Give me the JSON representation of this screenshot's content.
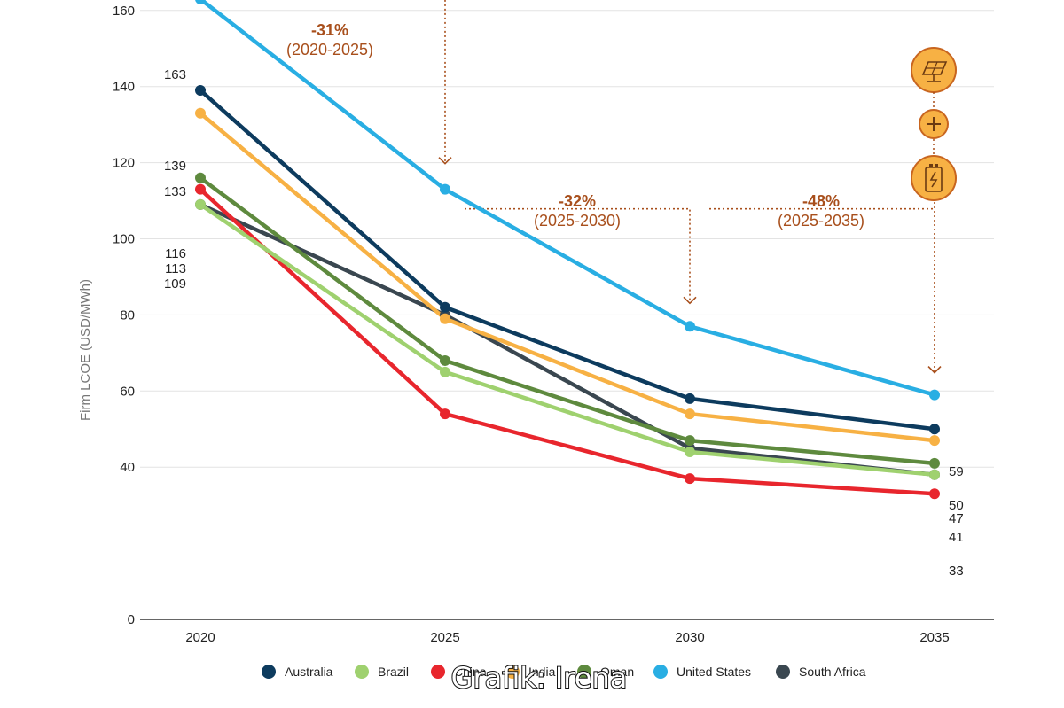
{
  "chart_data": {
    "type": "line",
    "x": [
      "2020",
      "2025",
      "2030",
      "2035"
    ],
    "ylabel": "Firm LCOE (USD/MWh)",
    "yticks": [
      0,
      40,
      60,
      80,
      100,
      120,
      140,
      160
    ],
    "ylim": [
      0,
      170
    ],
    "grid": true,
    "legend_position": "bottom",
    "series": [
      {
        "name": "Australia",
        "color": "#0d3b5e",
        "values": [
          139,
          82,
          58,
          50
        ]
      },
      {
        "name": "Brazil",
        "color": "#9fd16f",
        "values": [
          109,
          65,
          44,
          38
        ]
      },
      {
        "name": "China",
        "color": "#e8262d",
        "values": [
          113,
          54,
          37,
          33
        ]
      },
      {
        "name": "India",
        "color": "#f7b144",
        "values": [
          133,
          79,
          54,
          47
        ]
      },
      {
        "name": "Oman",
        "color": "#5e8a3e",
        "values": [
          116,
          68,
          47,
          41
        ]
      },
      {
        "name": "United States",
        "color": "#29aee3",
        "values": [
          163,
          113,
          77,
          59
        ]
      },
      {
        "name": "South Africa",
        "color": "#3a4750",
        "values": [
          109,
          80,
          45,
          38
        ]
      }
    ],
    "start_labels": [
      "163",
      "139",
      "133",
      "116",
      "113",
      "109"
    ],
    "end_labels": [
      "59",
      "50",
      "47",
      "41",
      "33"
    ],
    "annotations": [
      {
        "pct": "-31%",
        "range": "(2020-2025)"
      },
      {
        "pct": "-32%",
        "range": "(2025-2030)"
      },
      {
        "pct": "-48%",
        "range": "(2025-2035)"
      }
    ]
  },
  "icons": [
    "solar-panel-icon",
    "plus-icon",
    "battery-icon"
  ],
  "annotation_color": "#a84f1c",
  "icon_fill": "#f7b144",
  "watermark": "Grafik: Irena"
}
